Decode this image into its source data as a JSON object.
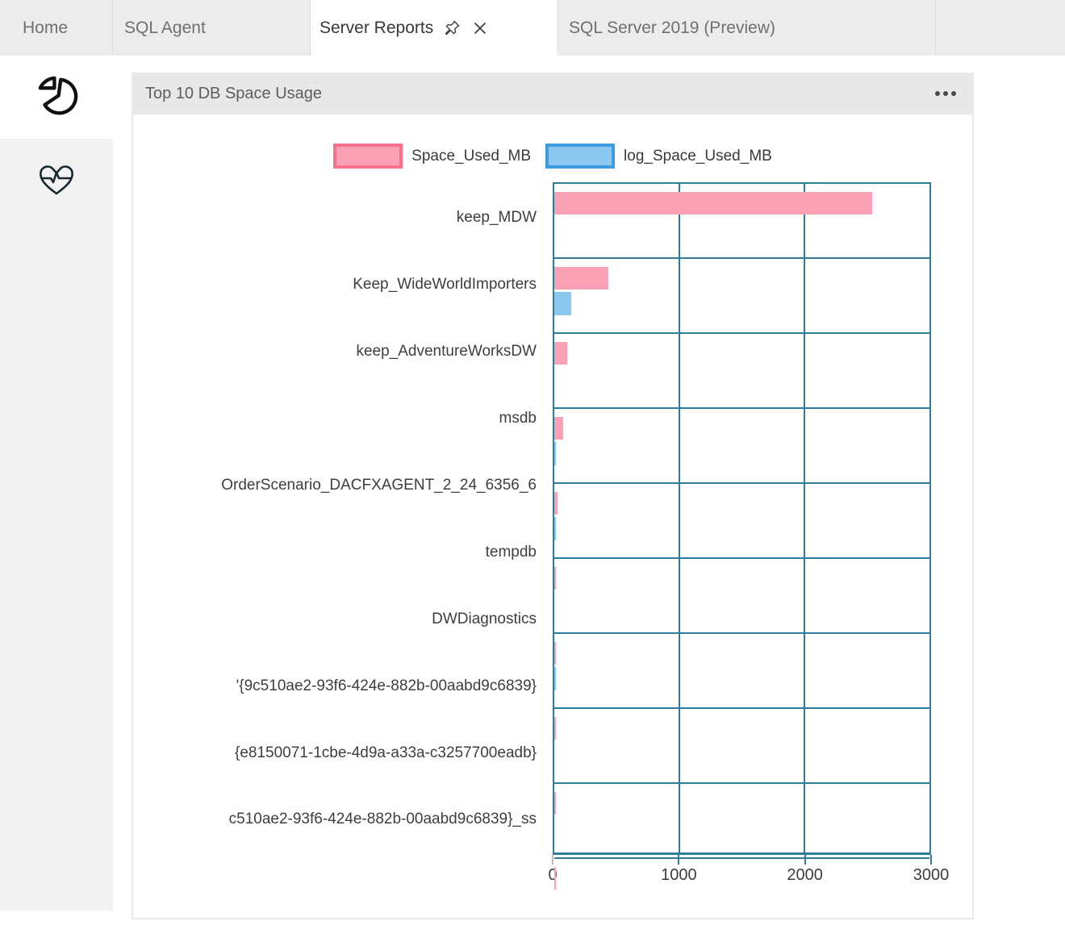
{
  "tabs": [
    {
      "label": "Home"
    },
    {
      "label": "SQL Agent"
    },
    {
      "label": "Server Reports",
      "active": true
    },
    {
      "label": "SQL Server 2019 (Preview)"
    }
  ],
  "sidebar": {
    "items": [
      {
        "icon": "pie-chart-icon",
        "active": true
      },
      {
        "icon": "heart-pulse-icon",
        "active": false
      }
    ]
  },
  "panel": {
    "title": "Top 10 DB Space Usage",
    "menu_icon": "ellipsis-icon"
  },
  "chart_data": {
    "type": "bar",
    "orientation": "horizontal",
    "title": "Top 10 DB Space Usage",
    "categories": [
      "keep_MDW",
      "Keep_WideWorldImporters",
      "keep_AdventureWorksDW",
      "msdb",
      "OrderScenario_DACFXAGENT_2_24_6356_6",
      "tempdb",
      "DWDiagnostics",
      "'{9c510ae2-93f6-424e-882b-00aabd9c6839}",
      "{e8150071-1cbe-4d9a-a33a-c3257700eadb}",
      "c510ae2-93f6-424e-882b-00aabd9c6839}_ss"
    ],
    "series": [
      {
        "name": "Space_Used_MB",
        "color": "#FBA1B5",
        "border_color": "#F8718C",
        "values": [
          2543,
          434,
          104,
          70,
          26,
          4,
          4,
          3,
          3,
          3
        ]
      },
      {
        "name": "log_Space_Used_MB",
        "color": "#8CC8F0",
        "border_color": "#3D9BE2",
        "values": [
          0,
          134,
          0,
          15,
          4,
          0,
          2,
          0,
          0,
          0
        ]
      }
    ],
    "xlim": [
      0,
      3000
    ],
    "x_ticks": [
      0,
      1000,
      2000,
      3000
    ],
    "grid": true,
    "grid_color": "#2E7D9B",
    "legend_position": "top"
  }
}
